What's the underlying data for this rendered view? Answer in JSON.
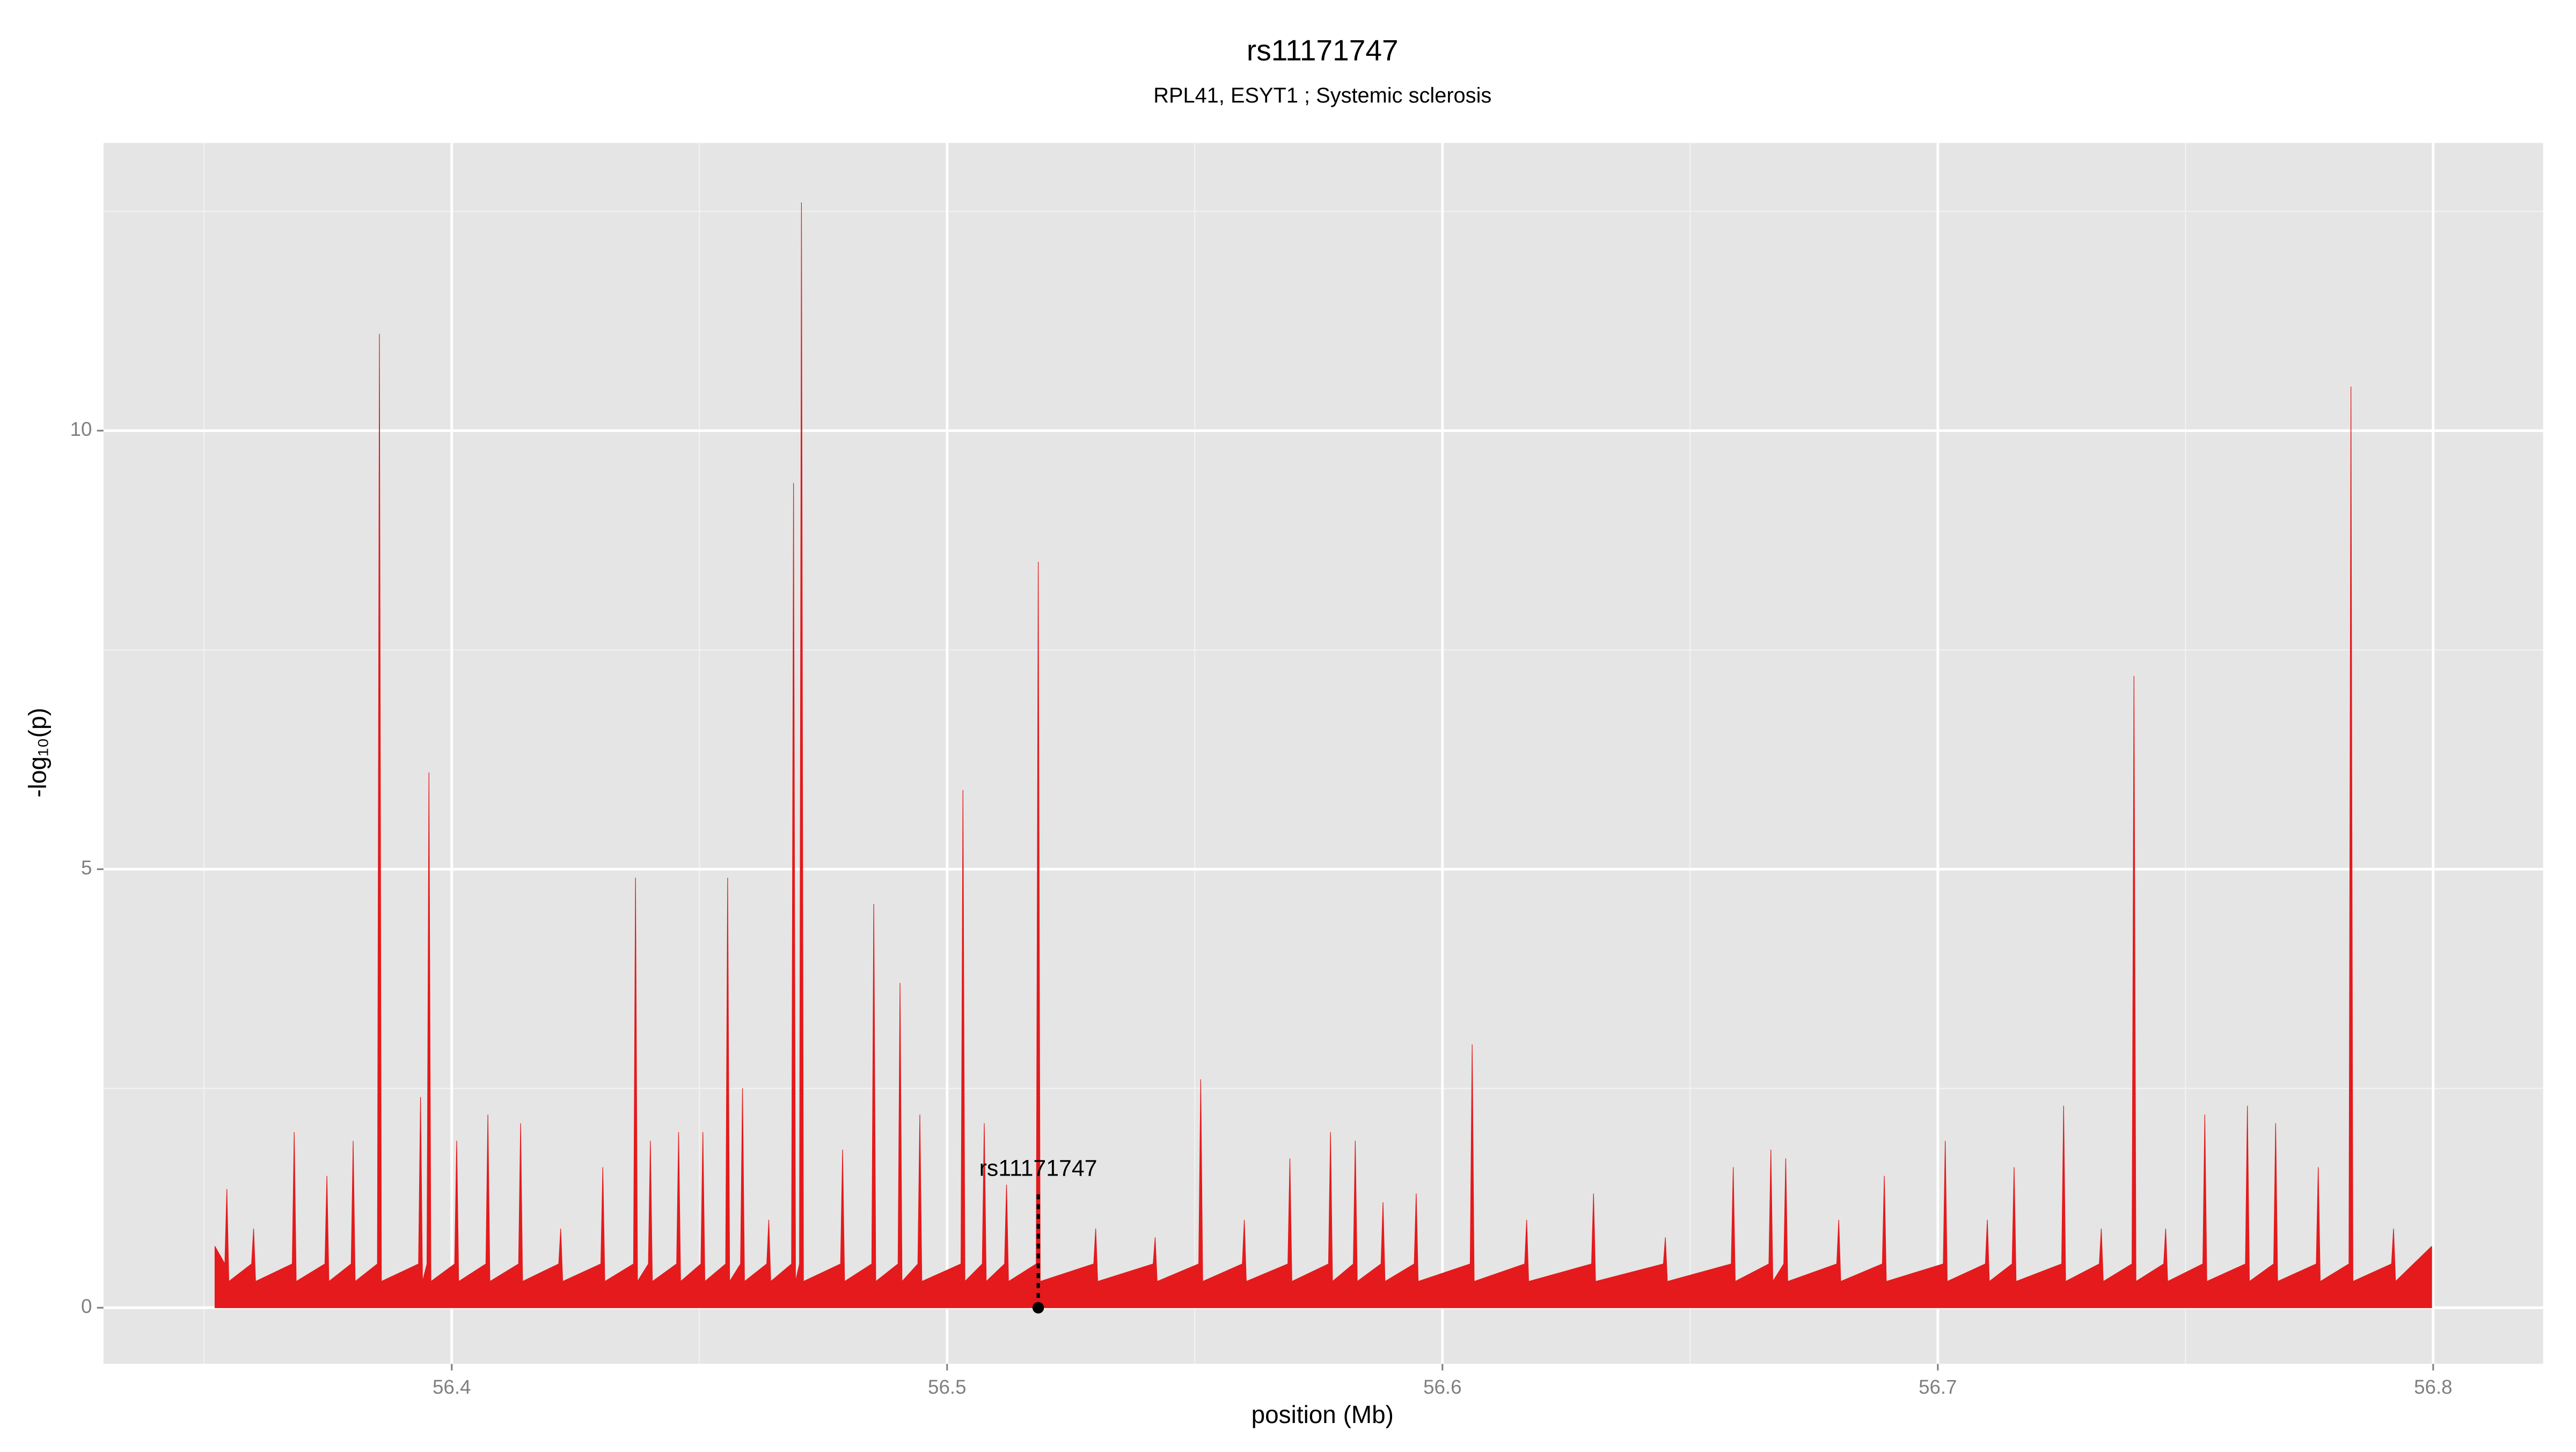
{
  "chart_data": {
    "type": "area",
    "title": "rs11171747",
    "subtitle": "RPL41, ESYT1 ; Systemic sclerosis",
    "xlabel": "position (Mb)",
    "ylabel": "-log₁₀(p)",
    "xlim": [
      56.3297,
      56.8222
    ],
    "ylim": [
      -0.64,
      13.28
    ],
    "xticks": [
      56.4,
      56.5,
      56.6,
      56.7,
      56.8
    ],
    "yticks": [
      0,
      5,
      10
    ],
    "grid": true,
    "annotation": {
      "label": "rs11171747",
      "x": 56.5184,
      "y": 0
    },
    "x": [
      56.3522,
      56.3542,
      56.3546,
      56.355,
      56.3596,
      56.36,
      56.3604,
      56.3678,
      56.3682,
      56.3686,
      56.3744,
      56.3748,
      56.3752,
      56.3797,
      56.3801,
      56.3805,
      56.385,
      56.3854,
      56.3858,
      56.3933,
      56.3937,
      56.3941,
      56.395,
      56.3954,
      56.3958,
      56.4006,
      56.401,
      56.4014,
      56.4069,
      56.4073,
      56.4077,
      56.4135,
      56.4139,
      56.4143,
      56.4216,
      56.422,
      56.4224,
      56.4301,
      56.4305,
      56.4309,
      56.4367,
      56.4371,
      56.4375,
      56.4397,
      56.4401,
      56.4405,
      56.4454,
      56.4458,
      56.4462,
      56.4503,
      56.4507,
      56.4511,
      56.4553,
      56.4557,
      56.4561,
      56.4583,
      56.4587,
      56.4591,
      56.4636,
      56.464,
      56.4644,
      56.4686,
      56.469,
      56.4694,
      56.4702,
      56.4706,
      56.471,
      56.4785,
      56.4789,
      56.4793,
      56.4848,
      56.4852,
      56.4856,
      56.4901,
      56.4905,
      56.4909,
      56.4941,
      56.4945,
      56.4949,
      56.5028,
      56.5032,
      56.5036,
      56.5071,
      56.5075,
      56.5079,
      56.5116,
      56.512,
      56.5124,
      56.518,
      56.5184,
      56.5188,
      56.5296,
      56.53,
      56.5304,
      56.5416,
      56.542,
      56.5424,
      56.5508,
      56.5512,
      56.5516,
      56.5596,
      56.56,
      56.5604,
      56.5688,
      56.5692,
      56.5696,
      56.577,
      56.5774,
      56.5778,
      56.582,
      56.5824,
      56.5828,
      56.5876,
      56.588,
      56.5884,
      56.5943,
      56.5947,
      56.5951,
      56.6056,
      56.606,
      56.6064,
      56.6166,
      56.617,
      56.6174,
      56.6301,
      56.6305,
      56.6309,
      56.6446,
      56.645,
      56.6454,
      56.6583,
      56.6587,
      56.6591,
      56.6659,
      56.6663,
      56.6667,
      56.6689,
      56.6693,
      56.6697,
      56.6796,
      56.68,
      56.6804,
      56.6888,
      56.6892,
      56.6896,
      56.7011,
      56.7015,
      56.7019,
      56.7096,
      56.71,
      56.7104,
      56.715,
      56.7154,
      56.7158,
      56.725,
      56.7254,
      56.7258,
      56.7326,
      56.733,
      56.7334,
      56.7392,
      56.7396,
      56.74,
      56.7456,
      56.746,
      56.7464,
      56.7535,
      56.7539,
      56.7543,
      56.7621,
      56.7625,
      56.7629,
      56.7678,
      56.7682,
      56.7686,
      56.7764,
      56.7768,
      56.7772,
      56.783,
      56.7834,
      56.7838,
      56.7916,
      56.792,
      56.7924,
      56.7997
    ],
    "series": [
      {
        "color": "#e41a1c",
        "values": [
          0.7,
          0.5,
          1.35,
          0.3,
          0.5,
          0.9,
          0.3,
          0.5,
          2.0,
          0.3,
          0.5,
          1.5,
          0.3,
          0.5,
          1.9,
          0.3,
          0.5,
          11.1,
          0.3,
          0.5,
          2.4,
          0.3,
          0.5,
          6.1,
          0.3,
          0.5,
          1.9,
          0.3,
          0.5,
          2.2,
          0.3,
          0.5,
          2.1,
          0.3,
          0.5,
          0.9,
          0.3,
          0.5,
          1.6,
          0.3,
          0.5,
          4.9,
          0.3,
          0.5,
          1.9,
          0.3,
          0.5,
          2.0,
          0.3,
          0.5,
          2.0,
          0.3,
          0.5,
          4.9,
          0.3,
          0.5,
          2.5,
          0.3,
          0.5,
          1.0,
          0.3,
          0.5,
          9.4,
          0.3,
          0.5,
          12.6,
          0.3,
          0.5,
          1.8,
          0.3,
          0.5,
          4.6,
          0.3,
          0.5,
          3.7,
          0.3,
          0.5,
          2.2,
          0.3,
          0.5,
          5.9,
          0.3,
          0.5,
          2.1,
          0.3,
          0.5,
          1.4,
          0.3,
          0.5,
          8.5,
          0.3,
          0.5,
          0.9,
          0.3,
          0.5,
          0.8,
          0.3,
          0.5,
          2.6,
          0.3,
          0.5,
          1.0,
          0.3,
          0.5,
          1.7,
          0.3,
          0.5,
          2.0,
          0.3,
          0.5,
          1.9,
          0.3,
          0.5,
          1.2,
          0.3,
          0.5,
          1.3,
          0.3,
          0.5,
          3.0,
          0.3,
          0.5,
          1.0,
          0.3,
          0.5,
          1.3,
          0.3,
          0.5,
          0.8,
          0.3,
          0.5,
          1.6,
          0.3,
          0.5,
          1.8,
          0.3,
          0.5,
          1.7,
          0.3,
          0.5,
          1.0,
          0.3,
          0.5,
          1.5,
          0.3,
          0.5,
          1.9,
          0.3,
          0.5,
          1.0,
          0.3,
          0.5,
          1.6,
          0.3,
          0.5,
          2.3,
          0.3,
          0.5,
          0.9,
          0.3,
          0.5,
          7.2,
          0.3,
          0.5,
          0.9,
          0.3,
          0.5,
          2.2,
          0.3,
          0.5,
          2.3,
          0.3,
          0.5,
          2.1,
          0.3,
          0.5,
          1.6,
          0.3,
          0.5,
          10.5,
          0.3,
          0.5,
          0.9,
          0.3,
          0.7
        ]
      }
    ]
  }
}
